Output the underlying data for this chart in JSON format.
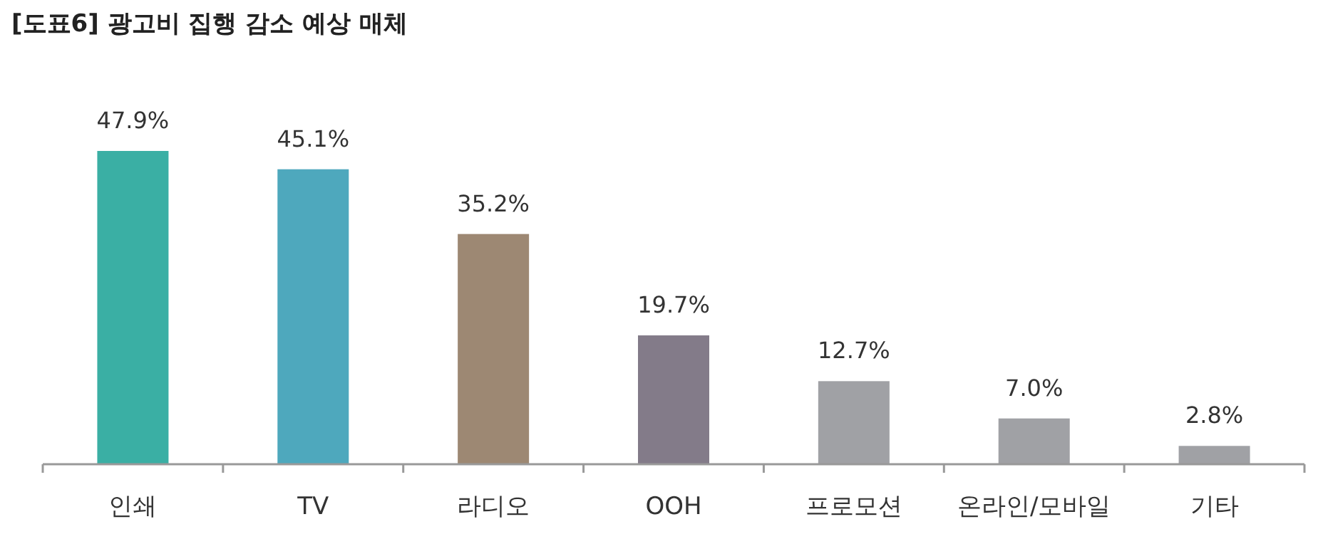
{
  "chart_data": {
    "type": "bar",
    "title": "[도표6] 광고비 집행 감소 예상 매체",
    "categories": [
      "인쇄",
      "TV",
      "라디오",
      "OOH",
      "프로모션",
      "온라인/모바일",
      "기타"
    ],
    "values": [
      47.9,
      45.1,
      35.2,
      19.7,
      12.7,
      7.0,
      2.8
    ],
    "colors": [
      "#3aafa4",
      "#4ea8bd",
      "#9d8873",
      "#837b89",
      "#a0a1a5",
      "#a0a1a5",
      "#a0a1a5"
    ],
    "value_labels": [
      "47.9%",
      "45.1%",
      "35.2%",
      "19.7%",
      "12.7%",
      "7.0%",
      "2.8%"
    ]
  }
}
